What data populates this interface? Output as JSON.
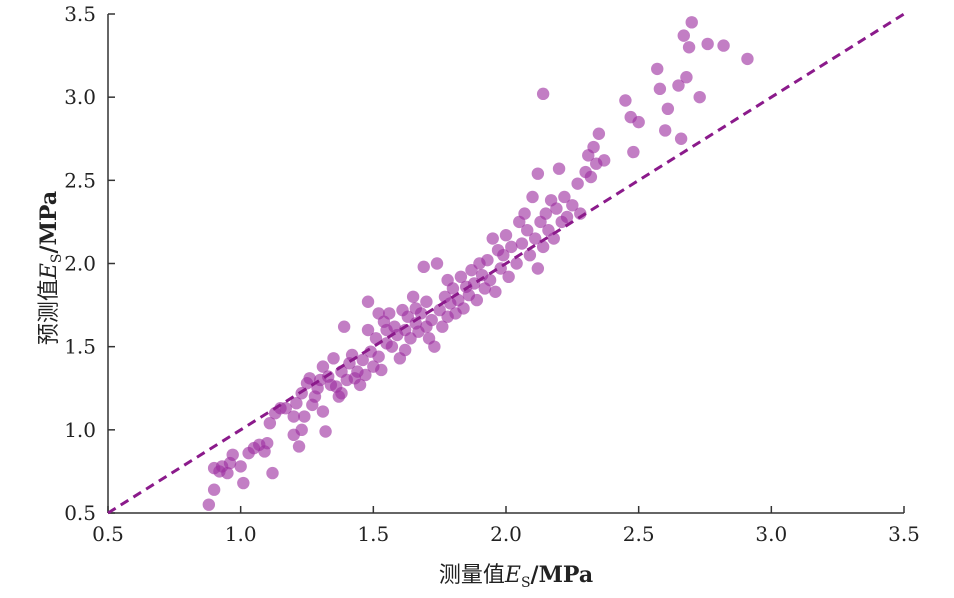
{
  "chart_data": {
    "type": "scatter",
    "xlabel": "测量值E_S/MPa",
    "ylabel": "预测值E_S/MPa",
    "xlabel_main": "测量值",
    "xlabel_var": "E",
    "xlabel_sub": "S",
    "xlabel_unit": "/MPa",
    "ylabel_main": "预测值",
    "ylabel_var": "E",
    "ylabel_sub": "S",
    "ylabel_unit": "/MPa",
    "xlim": [
      0.5,
      3.5
    ],
    "ylim": [
      0.5,
      3.5
    ],
    "xticks": [
      "0.5",
      "1.0",
      "1.5",
      "2.0",
      "2.5",
      "3.0",
      "3.5"
    ],
    "yticks": [
      "0.5",
      "1.0",
      "1.5",
      "2.0",
      "2.5",
      "3.0",
      "3.5"
    ],
    "reference_line": {
      "style": "dashed",
      "from": [
        0.5,
        0.5
      ],
      "to": [
        3.5,
        3.5
      ]
    },
    "colors": {
      "points": "#9c2fa0",
      "line": "#8b1a8b"
    },
    "grid": false,
    "points": [
      [
        0.88,
        0.55
      ],
      [
        0.9,
        0.64
      ],
      [
        0.92,
        0.75
      ],
      [
        0.9,
        0.77
      ],
      [
        0.93,
        0.78
      ],
      [
        0.95,
        0.74
      ],
      [
        0.96,
        0.8
      ],
      [
        0.97,
        0.85
      ],
      [
        1.0,
        0.78
      ],
      [
        1.01,
        0.68
      ],
      [
        1.03,
        0.86
      ],
      [
        1.05,
        0.89
      ],
      [
        1.07,
        0.91
      ],
      [
        1.09,
        0.87
      ],
      [
        1.1,
        0.92
      ],
      [
        1.11,
        1.04
      ],
      [
        1.12,
        0.74
      ],
      [
        1.13,
        1.1
      ],
      [
        1.15,
        1.13
      ],
      [
        1.17,
        1.13
      ],
      [
        1.2,
        0.97
      ],
      [
        1.2,
        1.08
      ],
      [
        1.21,
        1.16
      ],
      [
        1.22,
        0.9
      ],
      [
        1.23,
        1.0
      ],
      [
        1.23,
        1.22
      ],
      [
        1.24,
        1.08
      ],
      [
        1.25,
        1.28
      ],
      [
        1.26,
        1.31
      ],
      [
        1.27,
        1.15
      ],
      [
        1.28,
        1.2
      ],
      [
        1.29,
        1.25
      ],
      [
        1.3,
        1.3
      ],
      [
        1.31,
        1.11
      ],
      [
        1.31,
        1.38
      ],
      [
        1.32,
        0.99
      ],
      [
        1.33,
        1.32
      ],
      [
        1.34,
        1.27
      ],
      [
        1.35,
        1.43
      ],
      [
        1.36,
        1.26
      ],
      [
        1.37,
        1.2
      ],
      [
        1.38,
        1.22
      ],
      [
        1.38,
        1.35
      ],
      [
        1.39,
        1.62
      ],
      [
        1.4,
        1.3
      ],
      [
        1.41,
        1.4
      ],
      [
        1.42,
        1.45
      ],
      [
        1.43,
        1.31
      ],
      [
        1.44,
        1.35
      ],
      [
        1.45,
        1.27
      ],
      [
        1.46,
        1.42
      ],
      [
        1.47,
        1.33
      ],
      [
        1.48,
        1.6
      ],
      [
        1.48,
        1.77
      ],
      [
        1.49,
        1.47
      ],
      [
        1.5,
        1.38
      ],
      [
        1.51,
        1.55
      ],
      [
        1.52,
        1.7
      ],
      [
        1.52,
        1.44
      ],
      [
        1.53,
        1.36
      ],
      [
        1.54,
        1.65
      ],
      [
        1.55,
        1.6
      ],
      [
        1.55,
        1.52
      ],
      [
        1.56,
        1.7
      ],
      [
        1.57,
        1.5
      ],
      [
        1.58,
        1.62
      ],
      [
        1.59,
        1.57
      ],
      [
        1.6,
        1.43
      ],
      [
        1.61,
        1.72
      ],
      [
        1.62,
        1.48
      ],
      [
        1.62,
        1.6
      ],
      [
        1.63,
        1.68
      ],
      [
        1.64,
        1.55
      ],
      [
        1.65,
        1.8
      ],
      [
        1.66,
        1.64
      ],
      [
        1.66,
        1.73
      ],
      [
        1.67,
        1.59
      ],
      [
        1.68,
        1.7
      ],
      [
        1.69,
        1.98
      ],
      [
        1.7,
        1.62
      ],
      [
        1.7,
        1.77
      ],
      [
        1.71,
        1.55
      ],
      [
        1.72,
        1.66
      ],
      [
        1.73,
        1.5
      ],
      [
        1.74,
        2.0
      ],
      [
        1.75,
        1.72
      ],
      [
        1.76,
        1.62
      ],
      [
        1.77,
        1.8
      ],
      [
        1.78,
        1.68
      ],
      [
        1.78,
        1.9
      ],
      [
        1.79,
        1.76
      ],
      [
        1.8,
        1.85
      ],
      [
        1.81,
        1.7
      ],
      [
        1.82,
        1.78
      ],
      [
        1.83,
        1.92
      ],
      [
        1.84,
        1.73
      ],
      [
        1.85,
        1.86
      ],
      [
        1.86,
        1.81
      ],
      [
        1.87,
        1.96
      ],
      [
        1.88,
        1.88
      ],
      [
        1.89,
        1.78
      ],
      [
        1.9,
        2.0
      ],
      [
        1.91,
        1.93
      ],
      [
        1.92,
        1.85
      ],
      [
        1.93,
        2.02
      ],
      [
        1.94,
        1.9
      ],
      [
        1.95,
        2.15
      ],
      [
        1.96,
        1.83
      ],
      [
        1.97,
        2.08
      ],
      [
        1.98,
        1.97
      ],
      [
        1.99,
        2.05
      ],
      [
        2.0,
        2.17
      ],
      [
        2.01,
        1.92
      ],
      [
        2.02,
        2.1
      ],
      [
        2.04,
        2.0
      ],
      [
        2.05,
        2.25
      ],
      [
        2.06,
        2.12
      ],
      [
        2.07,
        2.3
      ],
      [
        2.08,
        2.2
      ],
      [
        2.09,
        2.05
      ],
      [
        2.1,
        2.4
      ],
      [
        2.11,
        2.15
      ],
      [
        2.12,
        2.54
      ],
      [
        2.12,
        1.97
      ],
      [
        2.13,
        2.25
      ],
      [
        2.14,
        2.1
      ],
      [
        2.14,
        3.02
      ],
      [
        2.15,
        2.3
      ],
      [
        2.16,
        2.2
      ],
      [
        2.17,
        2.38
      ],
      [
        2.18,
        2.15
      ],
      [
        2.19,
        2.33
      ],
      [
        2.2,
        2.57
      ],
      [
        2.21,
        2.25
      ],
      [
        2.22,
        2.4
      ],
      [
        2.23,
        2.28
      ],
      [
        2.25,
        2.35
      ],
      [
        2.27,
        2.48
      ],
      [
        2.28,
        2.3
      ],
      [
        2.3,
        2.55
      ],
      [
        2.31,
        2.65
      ],
      [
        2.32,
        2.52
      ],
      [
        2.33,
        2.7
      ],
      [
        2.34,
        2.6
      ],
      [
        2.35,
        2.78
      ],
      [
        2.37,
        2.62
      ],
      [
        2.45,
        2.98
      ],
      [
        2.47,
        2.88
      ],
      [
        2.48,
        2.67
      ],
      [
        2.5,
        2.85
      ],
      [
        2.57,
        3.17
      ],
      [
        2.58,
        3.05
      ],
      [
        2.6,
        2.8
      ],
      [
        2.61,
        2.93
      ],
      [
        2.65,
        3.07
      ],
      [
        2.66,
        2.75
      ],
      [
        2.67,
        3.37
      ],
      [
        2.68,
        3.12
      ],
      [
        2.69,
        3.3
      ],
      [
        2.7,
        3.45
      ],
      [
        2.73,
        3.0
      ],
      [
        2.76,
        3.32
      ],
      [
        2.82,
        3.31
      ],
      [
        2.91,
        3.23
      ]
    ]
  }
}
